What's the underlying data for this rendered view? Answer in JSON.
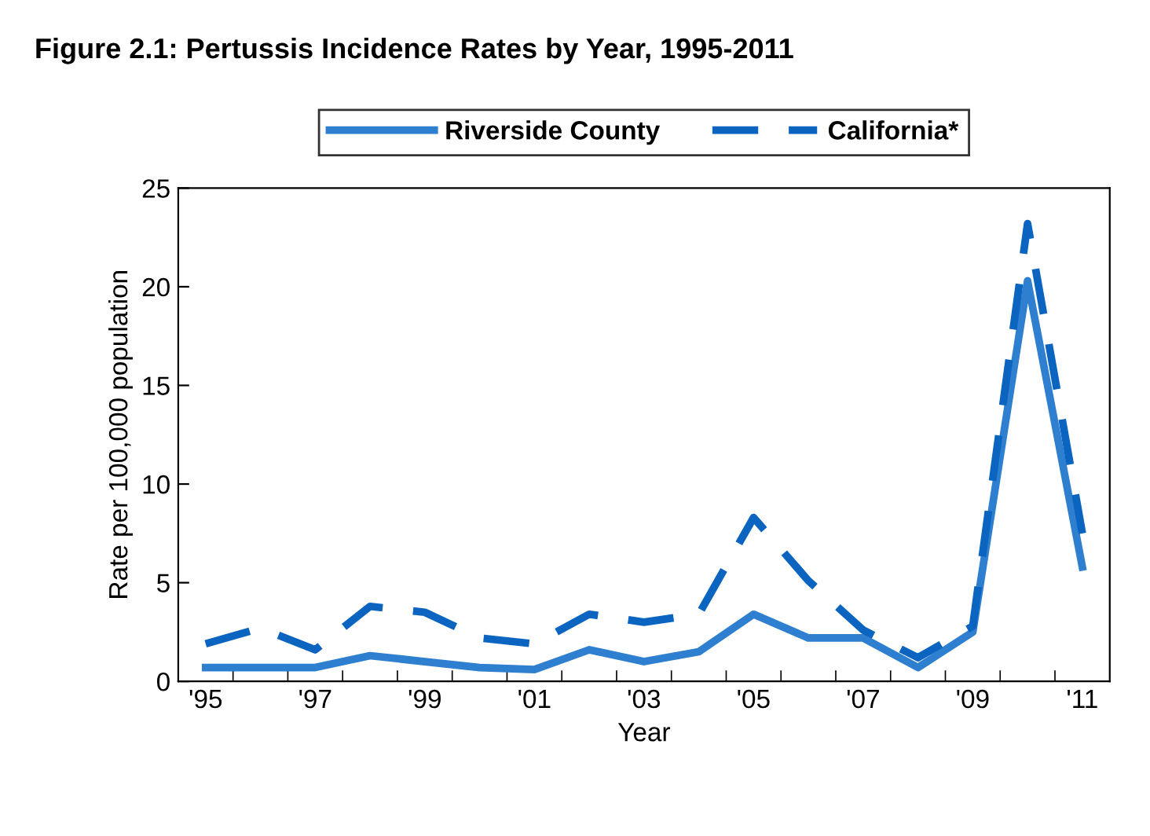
{
  "chart_data": {
    "type": "line",
    "title": "Figure 2.1: Pertussis Incidence Rates by Year, 1995-2011",
    "xlabel": "Year",
    "ylabel": "Rate per 100,000 population",
    "categories": [
      "'95",
      null,
      "'97",
      null,
      "'99",
      null,
      "'01",
      null,
      "'03",
      null,
      "'05",
      null,
      "'07",
      null,
      "'09",
      null,
      "'11"
    ],
    "series": [
      {
        "name": "Riverside County",
        "color": "#2e7fd0",
        "line_style": "solid",
        "values": [
          0.7,
          0.7,
          0.7,
          1.3,
          1.0,
          0.7,
          0.6,
          1.6,
          1.0,
          1.5,
          3.4,
          2.2,
          2.2,
          0.7,
          2.5,
          20.3,
          5.8
        ]
      },
      {
        "name": "California*",
        "color": "#0a64c0",
        "line_style": "dashed",
        "values": [
          1.9,
          2.7,
          1.6,
          3.8,
          3.5,
          2.2,
          1.9,
          3.4,
          3.0,
          3.4,
          8.3,
          5.1,
          2.6,
          1.2,
          2.8,
          23.2,
          7.5
        ]
      }
    ],
    "ylim": [
      0,
      25
    ],
    "yticks": [
      0,
      5,
      10,
      15,
      20,
      25
    ],
    "grid": false,
    "legend": "top",
    "marker": "none"
  }
}
